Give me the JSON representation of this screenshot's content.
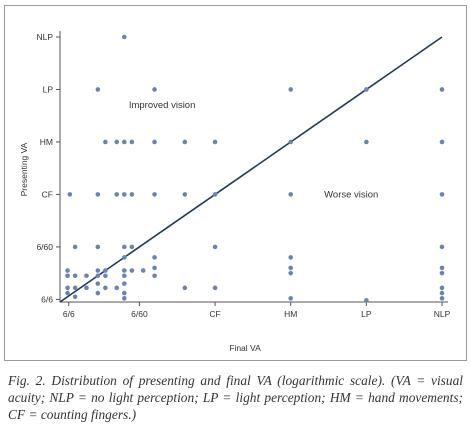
{
  "chart_data": {
    "type": "scatter",
    "title": "",
    "xlabel": "Final VA",
    "ylabel": "Presenting VA",
    "scale": "logarithmic",
    "x_ticks": [
      "6/6",
      "6/60",
      "CF",
      "HM",
      "LP",
      "NLP"
    ],
    "y_ticks": [
      "6/6",
      "6/60",
      "CF",
      "HM",
      "LP",
      "NLP"
    ],
    "x_range": [
      0.95,
      6.0
    ],
    "y_range": [
      0.95,
      6.0
    ],
    "reference_line": {
      "from": [
        0.95,
        0.95
      ],
      "to": [
        6.0,
        6.0
      ],
      "color": "#1f3a5a"
    },
    "regions": [
      {
        "label": "Improved vision",
        "x": 2.3,
        "y": 4.7
      },
      {
        "label": "Worse vision",
        "x": 4.8,
        "y": 3.0
      }
    ],
    "point_color": "#6b84ad",
    "points": [
      {
        "x": 1.05,
        "y": 1.55
      },
      {
        "x": 1.05,
        "y": 1.45
      },
      {
        "x": 1.05,
        "y": 1.22
      },
      {
        "x": 1.05,
        "y": 1.12
      },
      {
        "x": 1.08,
        "y": 3.0
      },
      {
        "x": 1.15,
        "y": 2.0
      },
      {
        "x": 1.15,
        "y": 1.45
      },
      {
        "x": 1.15,
        "y": 1.22
      },
      {
        "x": 1.15,
        "y": 1.05
      },
      {
        "x": 1.3,
        "y": 1.45
      },
      {
        "x": 1.3,
        "y": 1.22
      },
      {
        "x": 1.45,
        "y": 5.0
      },
      {
        "x": 1.45,
        "y": 3.0
      },
      {
        "x": 1.45,
        "y": 2.0
      },
      {
        "x": 1.45,
        "y": 1.55
      },
      {
        "x": 1.45,
        "y": 1.45
      },
      {
        "x": 1.45,
        "y": 1.3
      },
      {
        "x": 1.45,
        "y": 1.12
      },
      {
        "x": 1.55,
        "y": 4.0
      },
      {
        "x": 1.55,
        "y": 1.55
      },
      {
        "x": 1.55,
        "y": 1.45
      },
      {
        "x": 1.55,
        "y": 1.22
      },
      {
        "x": 1.7,
        "y": 4.0
      },
      {
        "x": 1.7,
        "y": 3.0
      },
      {
        "x": 1.7,
        "y": 1.22
      },
      {
        "x": 1.8,
        "y": 6.0
      },
      {
        "x": 1.8,
        "y": 4.0
      },
      {
        "x": 1.8,
        "y": 3.0
      },
      {
        "x": 1.8,
        "y": 2.0
      },
      {
        "x": 1.8,
        "y": 1.8
      },
      {
        "x": 1.8,
        "y": 1.55
      },
      {
        "x": 1.8,
        "y": 1.45
      },
      {
        "x": 1.8,
        "y": 1.3
      },
      {
        "x": 1.8,
        "y": 1.12
      },
      {
        "x": 1.8,
        "y": 1.02
      },
      {
        "x": 1.9,
        "y": 4.0
      },
      {
        "x": 1.9,
        "y": 3.0
      },
      {
        "x": 1.9,
        "y": 2.0
      },
      {
        "x": 1.9,
        "y": 1.55
      },
      {
        "x": 2.05,
        "y": 1.55
      },
      {
        "x": 2.2,
        "y": 5.0
      },
      {
        "x": 2.2,
        "y": 4.0
      },
      {
        "x": 2.2,
        "y": 3.0
      },
      {
        "x": 2.2,
        "y": 1.8
      },
      {
        "x": 2.2,
        "y": 1.6
      },
      {
        "x": 2.2,
        "y": 1.45
      },
      {
        "x": 2.6,
        "y": 4.0
      },
      {
        "x": 2.6,
        "y": 3.0
      },
      {
        "x": 2.6,
        "y": 1.22
      },
      {
        "x": 3.0,
        "y": 4.0
      },
      {
        "x": 3.0,
        "y": 3.0
      },
      {
        "x": 3.0,
        "y": 2.0
      },
      {
        "x": 3.0,
        "y": 1.22
      },
      {
        "x": 4.0,
        "y": 5.0
      },
      {
        "x": 4.0,
        "y": 4.0
      },
      {
        "x": 4.0,
        "y": 3.0
      },
      {
        "x": 4.0,
        "y": 1.8
      },
      {
        "x": 4.0,
        "y": 1.6
      },
      {
        "x": 4.0,
        "y": 1.5
      },
      {
        "x": 4.0,
        "y": 1.02
      },
      {
        "x": 5.0,
        "y": 5.0
      },
      {
        "x": 5.0,
        "y": 4.0
      },
      {
        "x": 5.0,
        "y": 0.98
      },
      {
        "x": 6.0,
        "y": 5.0
      },
      {
        "x": 6.0,
        "y": 4.0
      },
      {
        "x": 6.0,
        "y": 3.0
      },
      {
        "x": 6.0,
        "y": 2.0
      },
      {
        "x": 6.0,
        "y": 1.6
      },
      {
        "x": 6.0,
        "y": 1.5
      },
      {
        "x": 6.0,
        "y": 1.22
      },
      {
        "x": 6.0,
        "y": 1.12
      },
      {
        "x": 6.0,
        "y": 1.02
      }
    ]
  },
  "caption": "Fig. 2. Distribution of presenting and final VA (logarithmic scale). (VA = visual acuity; NLP = no light perception; LP = light perception; HM = hand movements; CF = counting fingers.)"
}
